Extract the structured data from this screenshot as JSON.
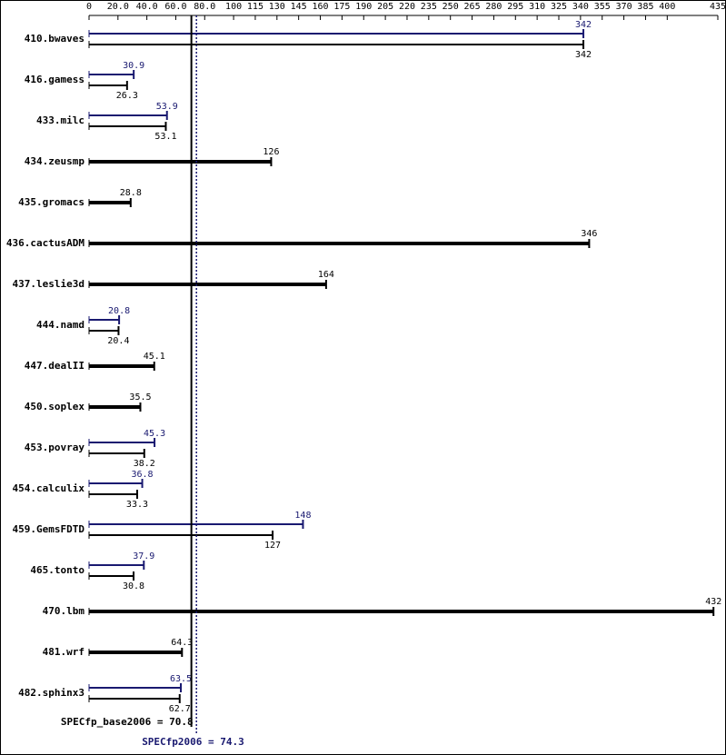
{
  "chart_data": {
    "type": "spec-bar",
    "categories": [
      "410.bwaves",
      "416.gamess",
      "433.milc",
      "434.zeusmp",
      "435.gromacs",
      "436.cactusADM",
      "437.leslie3d",
      "444.namd",
      "447.dealII",
      "450.soplex",
      "453.povray",
      "454.calculix",
      "459.GemsFDTD",
      "465.tonto",
      "470.lbm",
      "481.wrf",
      "482.sphinx3"
    ],
    "series": [
      {
        "color": "#191970",
        "values": [
          342,
          30.9,
          53.9,
          null,
          null,
          null,
          null,
          20.8,
          null,
          null,
          45.3,
          36.8,
          148,
          37.9,
          null,
          null,
          63.5
        ]
      },
      {
        "color": "#000000",
        "values": [
          342,
          26.3,
          53.1,
          126,
          28.8,
          346,
          164,
          20.4,
          45.1,
          35.5,
          38.2,
          33.3,
          127,
          30.8,
          432,
          64.3,
          62.7
        ]
      }
    ],
    "xlim": [
      0,
      435
    ],
    "xticks": [
      0,
      {
        "value": 20,
        "label": "20.0"
      },
      {
        "value": 40,
        "label": "40.0"
      },
      {
        "value": 60,
        "label": "60.0"
      },
      {
        "value": 80,
        "label": "80.0"
      },
      100,
      115,
      130,
      145,
      160,
      175,
      190,
      205,
      220,
      235,
      250,
      265,
      280,
      295,
      310,
      325,
      340,
      355,
      370,
      385,
      400,
      435
    ],
    "reference_lines": [
      {
        "label": "SPECfp_base2006 = 70.8",
        "value": 70.8,
        "color": "#000000"
      },
      {
        "label": "SPECfp2006 = 74.3",
        "value": 74.3,
        "color": "#191970"
      }
    ]
  }
}
